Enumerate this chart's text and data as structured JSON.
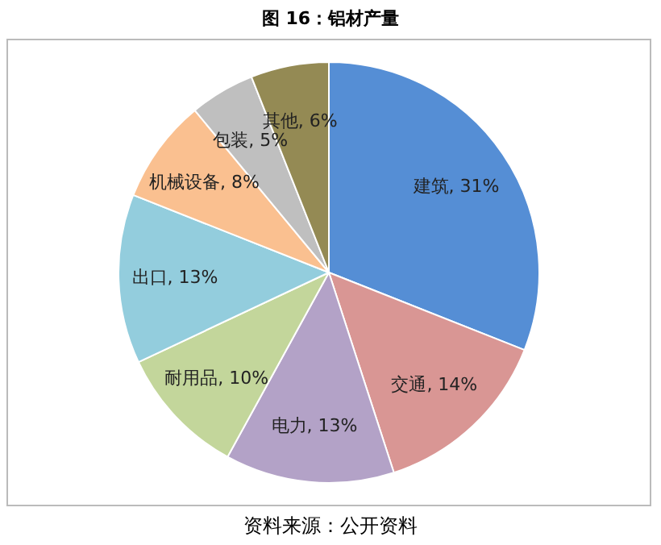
{
  "chart_data": {
    "type": "pie",
    "title": "图 16：铝材产量",
    "categories": [
      "建筑",
      "交通",
      "电力",
      "耐用品",
      "出口",
      "机械设备",
      "包装",
      "其他"
    ],
    "values": [
      31,
      14,
      13,
      10,
      13,
      8,
      5,
      6
    ],
    "value_labels": [
      "31%",
      "14%",
      "13%",
      "10%",
      "13%",
      "8%",
      "5%",
      "6%"
    ],
    "colors": [
      "#558ed5",
      "#d99694",
      "#b3a2c7",
      "#c3d69b",
      "#93cddd",
      "#fac090",
      "#bfbfbf",
      "#948a54"
    ],
    "annotations": [
      "资料来源：公开资料"
    ],
    "legend": false
  }
}
